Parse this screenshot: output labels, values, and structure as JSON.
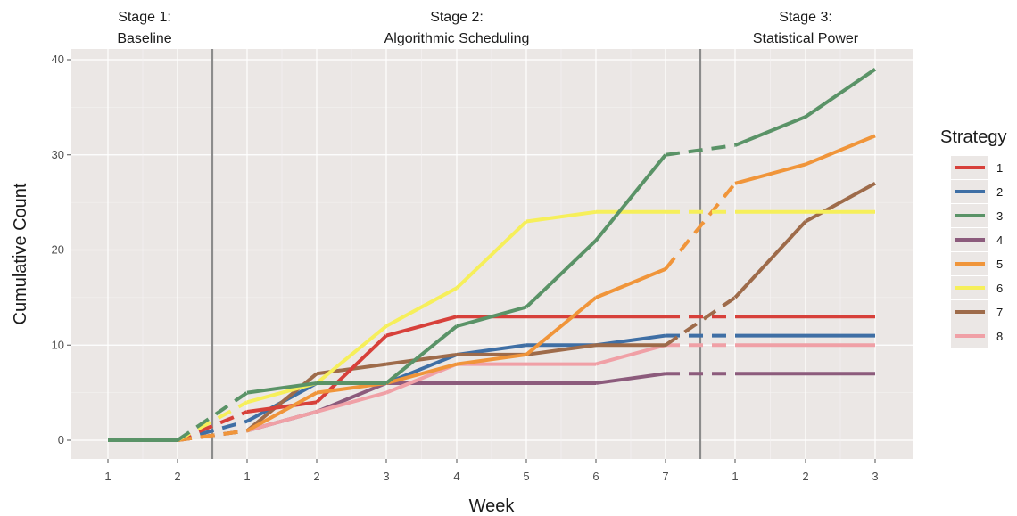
{
  "chart_data": {
    "type": "line",
    "xlabel": "Week",
    "ylabel": "Cumulative Count",
    "ylim": [
      0,
      40
    ],
    "y_ticks": [
      "0",
      "10",
      "20",
      "30",
      "40"
    ],
    "x_tick_labels": [
      "1",
      "2",
      "1",
      "2",
      "3",
      "4",
      "5",
      "6",
      "7",
      "1",
      "2",
      "3"
    ],
    "stages": [
      {
        "line1": "Stage 1:",
        "line2": "Baseline"
      },
      {
        "line1": "Stage 2:",
        "line2": "Algorithmic Scheduling"
      },
      {
        "line1": "Stage 3:",
        "line2": "Statistical Power"
      }
    ],
    "legend_title": "Strategy",
    "legend_position": "right",
    "grid": true,
    "background": "#ebe7e5",
    "series": [
      {
        "name": "1",
        "color": "#d7403a",
        "values": [
          0,
          0,
          3,
          4,
          11,
          13,
          13,
          13,
          13,
          13,
          13,
          13
        ]
      },
      {
        "name": "2",
        "color": "#3f6fa5",
        "values": [
          0,
          0,
          2,
          6,
          6,
          9,
          10,
          10,
          11,
          11,
          11,
          11
        ]
      },
      {
        "name": "3",
        "color": "#5a9367",
        "values": [
          0,
          0,
          5,
          6,
          6,
          12,
          14,
          21,
          30,
          31,
          34,
          39
        ]
      },
      {
        "name": "4",
        "color": "#8c5b7c",
        "values": [
          0,
          0,
          1,
          3,
          6,
          6,
          6,
          6,
          7,
          7,
          7,
          7
        ]
      },
      {
        "name": "5",
        "color": "#f0953a",
        "values": [
          0,
          0,
          1,
          5,
          6,
          8,
          9,
          15,
          18,
          27,
          29,
          32
        ]
      },
      {
        "name": "6",
        "color": "#f6ef5a",
        "values": [
          0,
          0,
          4,
          6,
          12,
          16,
          23,
          24,
          24,
          24,
          24,
          24
        ]
      },
      {
        "name": "7",
        "color": "#9e6b4a",
        "values": [
          0,
          0,
          1,
          7,
          8,
          9,
          9,
          10,
          10,
          15,
          23,
          27
        ]
      },
      {
        "name": "8",
        "color": "#f0a0a6",
        "values": [
          0,
          0,
          1,
          3,
          5,
          8,
          8,
          8,
          10,
          10,
          10,
          10
        ]
      }
    ]
  }
}
